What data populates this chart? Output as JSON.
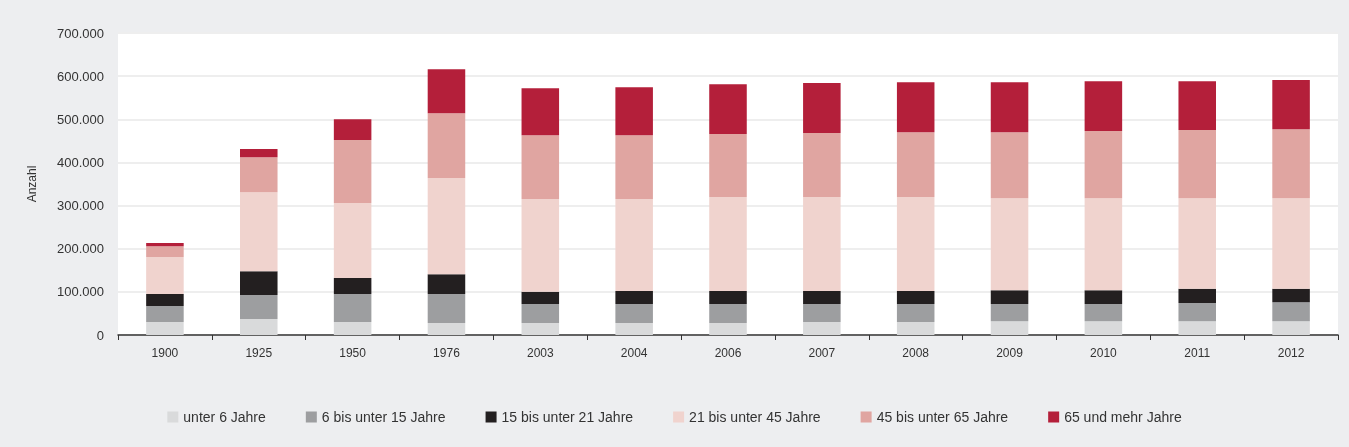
{
  "chart_data": {
    "type": "bar",
    "stacked": true,
    "ylabel": "Anzahl",
    "categories": [
      "1900",
      "1925",
      "1950",
      "1976",
      "2003",
      "2004",
      "2006",
      "2007",
      "2008",
      "2009",
      "2010",
      "2011",
      "2012"
    ],
    "series": [
      {
        "name": "unter 6 Jahre",
        "color": "#d9dadb",
        "values": [
          30000,
          37000,
          30000,
          28000,
          28000,
          28000,
          28000,
          30000,
          30000,
          32000,
          32000,
          32000,
          32000
        ]
      },
      {
        "name": "6 bis unter 15 Jahre",
        "color": "#9d9ea0",
        "values": [
          37000,
          56000,
          65000,
          67000,
          44000,
          44000,
          44000,
          42000,
          42000,
          40000,
          40000,
          42000,
          44000
        ]
      },
      {
        "name": "15 bis unter 21 Jahre",
        "color": "#231f20",
        "values": [
          28000,
          55000,
          37000,
          46000,
          28000,
          30000,
          30000,
          30000,
          30000,
          32000,
          32000,
          33000,
          31000
        ]
      },
      {
        "name": "21 bis unter 45 Jahre",
        "color": "#f0d3ce",
        "values": [
          86000,
          183000,
          174000,
          223000,
          215000,
          213000,
          218000,
          218000,
          218000,
          213000,
          213000,
          210000,
          210000
        ]
      },
      {
        "name": "45 bis unter 65 Jahre",
        "color": "#e0a5a1",
        "values": [
          25000,
          81000,
          146000,
          150000,
          148000,
          148000,
          146000,
          148000,
          150000,
          153000,
          156000,
          158000,
          160000
        ]
      },
      {
        "name": "65 und mehr Jahre",
        "color": "#b41f3a",
        "values": [
          7000,
          19000,
          48000,
          102000,
          109000,
          111000,
          115000,
          116000,
          116000,
          116000,
          115000,
          113000,
          114000
        ]
      }
    ],
    "ylim": [
      0,
      700000
    ],
    "yticks": [
      0,
      {
        "value": 100000,
        "label": "100.000"
      },
      {
        "value": 200000,
        "label": "200.000"
      },
      {
        "value": 300000,
        "label": "300.000"
      },
      {
        "value": 400000,
        "label": "400.000"
      },
      {
        "value": 500000,
        "label": "500.000"
      },
      {
        "value": 600000,
        "label": "600.000"
      },
      {
        "value": 700000,
        "label": "700.000"
      }
    ],
    "grid": "y",
    "legend": "bottom"
  }
}
